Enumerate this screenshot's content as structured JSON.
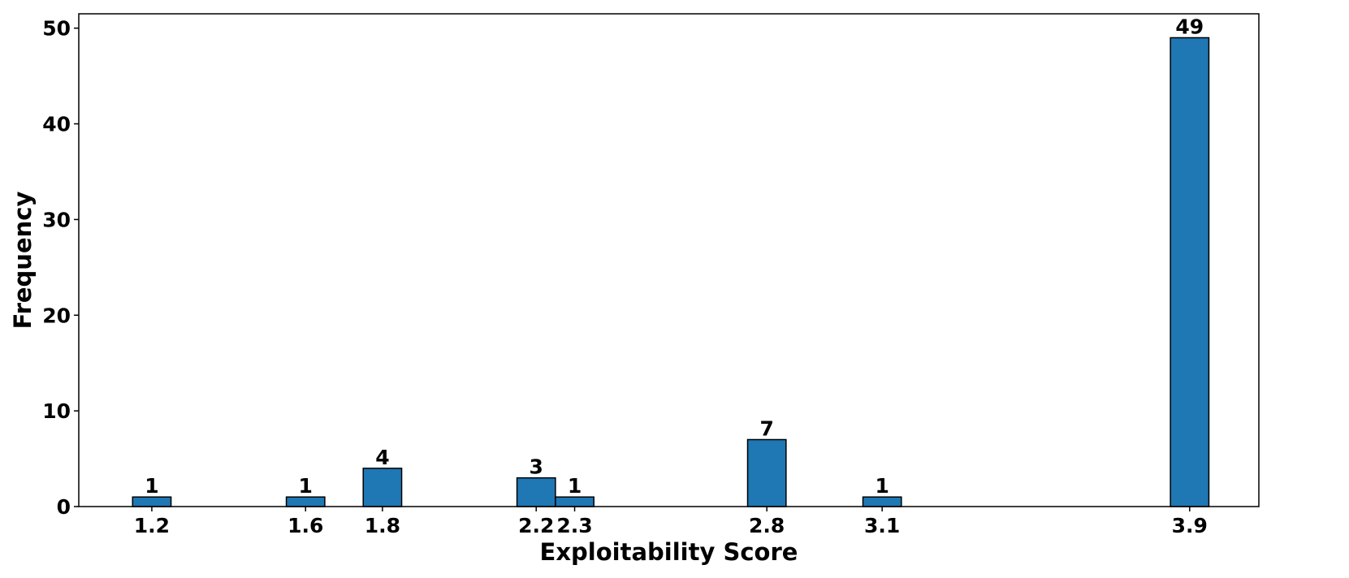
{
  "chart_data": {
    "type": "bar",
    "title": "",
    "xlabel": "Exploitability Score",
    "ylabel": "Frequency",
    "x": [
      1.2,
      1.6,
      1.8,
      2.2,
      2.3,
      2.8,
      3.1,
      3.9
    ],
    "x_tick_labels": [
      "1.2",
      "1.6",
      "1.8",
      "2.2",
      "2.3",
      "2.8",
      "3.1",
      "3.9"
    ],
    "values": [
      1,
      1,
      4,
      3,
      1,
      7,
      1,
      49
    ],
    "data_labels": [
      "1",
      "1",
      "4",
      "3",
      "1",
      "7",
      "1",
      "49"
    ],
    "y_ticks": [
      0,
      10,
      20,
      30,
      40,
      50
    ],
    "y_tick_labels": [
      "0",
      "10",
      "20",
      "30",
      "40",
      "50"
    ],
    "xlim": [
      1.01,
      4.08
    ],
    "ylim": [
      0,
      51.5
    ],
    "bar_width": 0.1,
    "grid": false,
    "legend": "none",
    "bar_color": "#1f77b4",
    "bar_edge_color": "#000000"
  }
}
